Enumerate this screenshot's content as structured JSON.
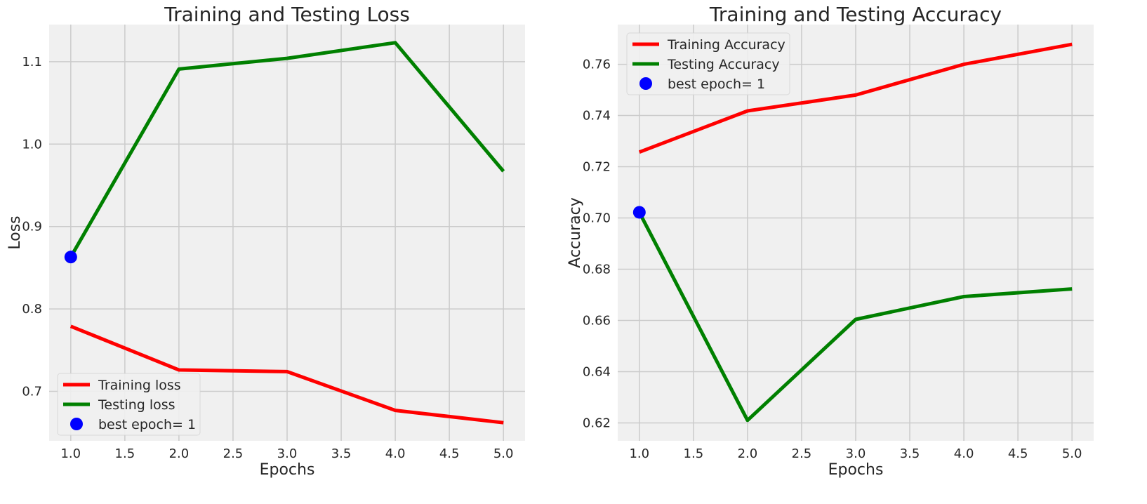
{
  "chart_data": [
    {
      "type": "line",
      "title": "Training and Testing Loss",
      "xlabel": "Epochs",
      "ylabel": "Loss",
      "x": [
        1,
        2,
        3,
        4,
        5
      ],
      "xlim": [
        0.8,
        5.2
      ],
      "ylim": [
        0.64,
        1.145
      ],
      "xticks": [
        1.0,
        1.5,
        2.0,
        2.5,
        3.0,
        3.5,
        4.0,
        4.5,
        5.0
      ],
      "xtick_labels": [
        "1.0",
        "1.5",
        "2.0",
        "2.5",
        "3.0",
        "3.5",
        "4.0",
        "4.5",
        "5.0"
      ],
      "yticks": [
        0.7,
        0.8,
        0.9,
        1.0,
        1.1
      ],
      "ytick_labels": [
        "0.7",
        "0.8",
        "0.9",
        "1.0",
        "1.1"
      ],
      "grid": true,
      "legend_position": "lower-left",
      "series": [
        {
          "name": "Training loss",
          "color": "#ff0000",
          "values": [
            0.779,
            0.726,
            0.724,
            0.677,
            0.662
          ]
        },
        {
          "name": "Testing loss",
          "color": "#008000",
          "values": [
            0.863,
            1.091,
            1.104,
            1.123,
            0.967
          ]
        }
      ],
      "best_point": {
        "name": "best epoch= 1",
        "color": "#0000ff",
        "x": 1,
        "y": 0.863
      }
    },
    {
      "type": "line",
      "title": "Training and Testing Accuracy",
      "xlabel": "Epochs",
      "ylabel": "Accuracy",
      "x": [
        1,
        2,
        3,
        4,
        5
      ],
      "xlim": [
        0.8,
        5.2
      ],
      "ylim": [
        0.613,
        0.7755
      ],
      "xticks": [
        1.0,
        1.5,
        2.0,
        2.5,
        3.0,
        3.5,
        4.0,
        4.5,
        5.0
      ],
      "xtick_labels": [
        "1.0",
        "1.5",
        "2.0",
        "2.5",
        "3.0",
        "3.5",
        "4.0",
        "4.5",
        "5.0"
      ],
      "yticks": [
        0.62,
        0.64,
        0.66,
        0.68,
        0.7,
        0.72,
        0.74,
        0.76
      ],
      "ytick_labels": [
        "0.62",
        "0.64",
        "0.66",
        "0.68",
        "0.70",
        "0.72",
        "0.74",
        "0.76"
      ],
      "grid": true,
      "legend_position": "top-left",
      "series": [
        {
          "name": "Training Accuracy",
          "color": "#ff0000",
          "values": [
            0.7257,
            0.7418,
            0.748,
            0.76,
            0.7678
          ]
        },
        {
          "name": "Testing Accuracy",
          "color": "#008000",
          "values": [
            0.7022,
            0.621,
            0.6604,
            0.6693,
            0.6723
          ]
        }
      ],
      "best_point": {
        "name": "best epoch= 1",
        "color": "#0000ff",
        "x": 1,
        "y": 0.7022
      }
    }
  ]
}
